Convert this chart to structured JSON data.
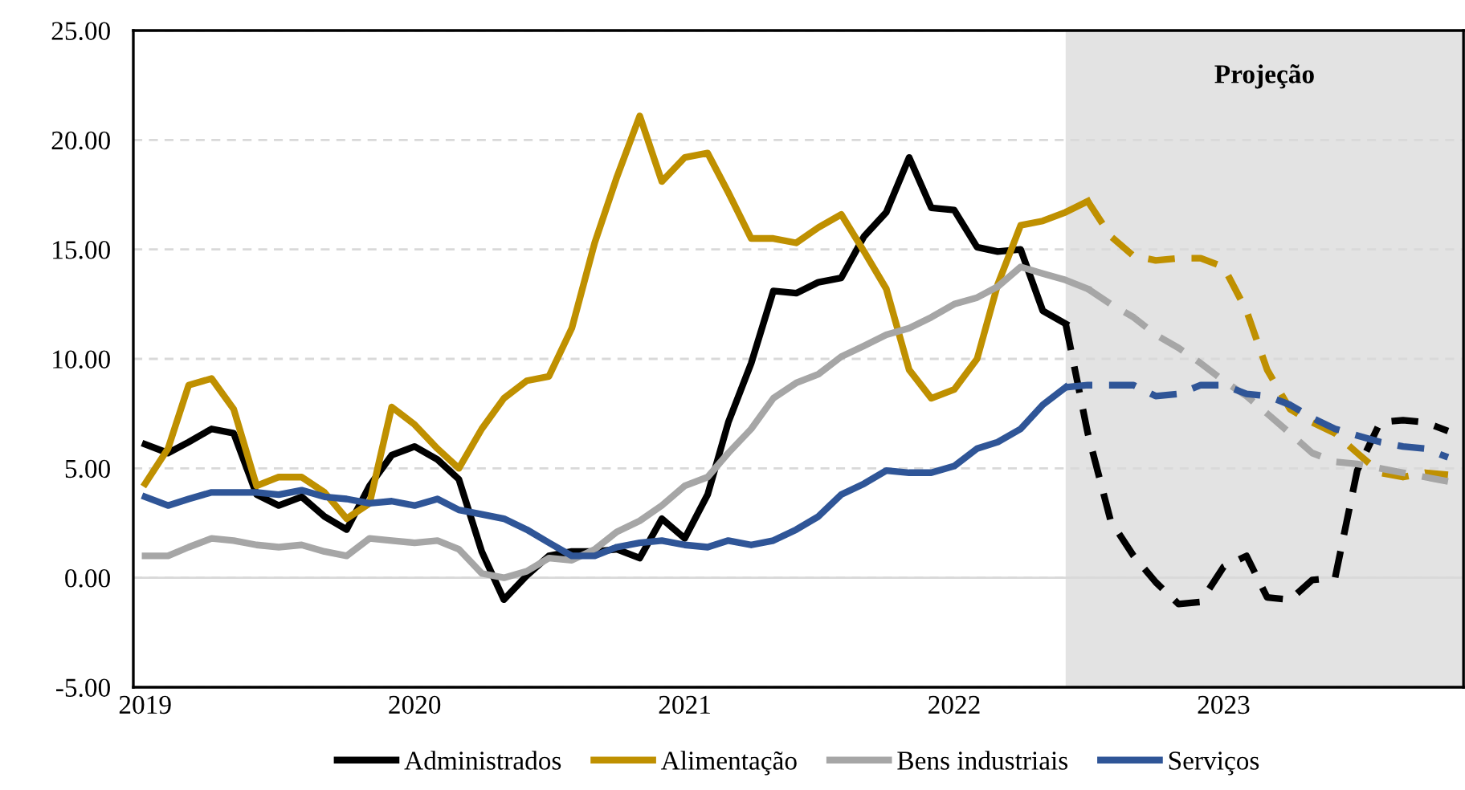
{
  "chart_data": {
    "type": "line",
    "x": [
      "2019-01",
      "2019-02",
      "2019-03",
      "2019-04",
      "2019-05",
      "2019-06",
      "2019-07",
      "2019-08",
      "2019-09",
      "2019-10",
      "2019-11",
      "2019-12",
      "2020-01",
      "2020-02",
      "2020-03",
      "2020-04",
      "2020-05",
      "2020-06",
      "2020-07",
      "2020-08",
      "2020-09",
      "2020-10",
      "2020-11",
      "2020-12",
      "2021-01",
      "2021-02",
      "2021-03",
      "2021-04",
      "2021-05",
      "2021-06",
      "2021-07",
      "2021-08",
      "2021-09",
      "2021-10",
      "2021-11",
      "2021-12",
      "2022-01",
      "2022-02",
      "2022-03",
      "2022-04",
      "2022-05",
      "2022-06"
    ],
    "series": [
      {
        "name": "Administrados",
        "color": "#000000",
        "line_style": "solid",
        "values": [
          6.1,
          5.7,
          6.2,
          6.8,
          6.6,
          3.8,
          3.3,
          3.7,
          2.8,
          2.2,
          4.2,
          5.6,
          6.0,
          5.4,
          4.5,
          1.2,
          -1.0,
          0.1,
          1.0,
          1.2,
          1.2,
          1.3,
          0.9,
          2.7,
          1.8,
          3.8,
          7.1,
          9.8,
          13.1,
          13.0,
          13.5,
          13.7,
          15.6,
          16.7,
          19.2,
          16.9,
          16.8,
          15.1,
          14.9,
          15.0,
          12.2,
          11.6
        ]
      },
      {
        "name": "Alimentação",
        "color": "#bf9000",
        "line_style": "solid",
        "x": [
          "2019-01",
          "2019-02",
          "2019-03",
          "2019-04",
          "2019-05",
          "2019-06",
          "2019-07",
          "2019-08",
          "2019-09",
          "2019-10",
          "2019-11",
          "2019-12",
          "2020-01",
          "2020-02",
          "2020-03",
          "2020-04",
          "2020-05",
          "2020-06",
          "2020-07",
          "2020-08",
          "2020-09",
          "2020-10",
          "2020-11",
          "2020-12",
          "2021-01",
          "2021-02",
          "2021-03",
          "2021-04",
          "2021-05",
          "2021-06",
          "2021-07",
          "2021-08",
          "2021-09",
          "2021-10",
          "2021-11",
          "2021-12",
          "2022-01",
          "2022-02",
          "2022-03",
          "2022-04",
          "2022-05",
          "2022-06",
          "2022-07"
        ],
        "values": [
          4.3,
          5.9,
          8.8,
          9.1,
          7.7,
          4.2,
          4.6,
          4.6,
          3.9,
          2.7,
          3.4,
          7.8,
          7.0,
          5.9,
          5.0,
          6.8,
          8.2,
          9.0,
          9.2,
          11.4,
          15.3,
          18.3,
          21.1,
          18.1,
          19.2,
          19.4,
          17.6,
          15.5,
          15.5,
          15.3,
          16.0,
          16.6,
          14.9,
          13.2,
          9.5,
          8.2,
          8.6,
          10.0,
          13.4,
          16.1,
          16.3,
          16.7,
          17.2
        ]
      },
      {
        "name": "Bens industriais",
        "color": "#a6a6a6",
        "line_style": "solid",
        "x": [
          "2019-01",
          "2019-02",
          "2019-03",
          "2019-04",
          "2019-05",
          "2019-06",
          "2019-07",
          "2019-08",
          "2019-09",
          "2019-10",
          "2019-11",
          "2019-12",
          "2020-01",
          "2020-02",
          "2020-03",
          "2020-04",
          "2020-05",
          "2020-06",
          "2020-07",
          "2020-08",
          "2020-09",
          "2020-10",
          "2020-11",
          "2020-12",
          "2021-01",
          "2021-02",
          "2021-03",
          "2021-04",
          "2021-05",
          "2021-06",
          "2021-07",
          "2021-08",
          "2021-09",
          "2021-10",
          "2021-11",
          "2021-12",
          "2022-01",
          "2022-02",
          "2022-03",
          "2022-04",
          "2022-05",
          "2022-06",
          "2022-07"
        ],
        "values": [
          1.0,
          1.0,
          1.4,
          1.8,
          1.7,
          1.5,
          1.4,
          1.5,
          1.2,
          1.0,
          1.8,
          1.7,
          1.6,
          1.7,
          1.3,
          0.2,
          0.0,
          0.3,
          0.9,
          0.8,
          1.3,
          2.1,
          2.6,
          3.3,
          4.2,
          4.6,
          5.7,
          6.8,
          8.2,
          8.9,
          9.3,
          10.1,
          10.6,
          11.1,
          11.4,
          11.9,
          12.5,
          12.8,
          13.3,
          14.2,
          13.9,
          13.6,
          13.2
        ]
      },
      {
        "name": "Serviços",
        "color": "#2f5597",
        "line_style": "solid",
        "values": [
          3.7,
          3.3,
          3.6,
          3.9,
          3.9,
          3.9,
          3.8,
          4.0,
          3.7,
          3.6,
          3.4,
          3.5,
          3.3,
          3.6,
          3.1,
          2.9,
          2.7,
          2.2,
          1.6,
          1.0,
          1.0,
          1.4,
          1.6,
          1.7,
          1.5,
          1.4,
          1.7,
          1.5,
          1.7,
          2.2,
          2.8,
          3.8,
          4.3,
          4.9,
          4.8,
          4.8,
          5.1,
          5.9,
          6.2,
          6.8,
          7.9,
          8.7
        ]
      },
      {
        "color": "#000000",
        "line_style": "dashed",
        "x": [
          "2022-06",
          "2022-07",
          "2022-08",
          "2022-09",
          "2022-10",
          "2022-11",
          "2022-12",
          "2023-01",
          "2023-02",
          "2023-03",
          "2023-04",
          "2023-05",
          "2023-06",
          "2023-07",
          "2023-08",
          "2023-09",
          "2023-10",
          "2023-11"
        ],
        "values": [
          11.6,
          6.6,
          2.6,
          1.0,
          -0.2,
          -1.2,
          -1.1,
          0.5,
          1.0,
          -0.9,
          -1.0,
          -0.1,
          0.0,
          4.9,
          7.1,
          7.2,
          7.1,
          6.7
        ]
      },
      {
        "color": "#bf9000",
        "line_style": "dashed",
        "x": [
          "2022-07",
          "2022-08",
          "2022-09",
          "2022-10",
          "2022-11",
          "2022-12",
          "2023-01",
          "2023-02",
          "2023-03",
          "2023-04",
          "2023-05",
          "2023-06",
          "2023-07",
          "2023-08",
          "2023-09",
          "2023-10",
          "2023-11"
        ],
        "values": [
          17.2,
          15.6,
          14.7,
          14.5,
          14.6,
          14.6,
          14.2,
          12.2,
          9.5,
          7.7,
          7.1,
          6.6,
          5.7,
          4.8,
          4.6,
          4.8,
          4.7
        ]
      },
      {
        "color": "#a6a6a6",
        "line_style": "dashed",
        "x": [
          "2022-07",
          "2022-08",
          "2022-09",
          "2022-10",
          "2022-11",
          "2022-12",
          "2023-01",
          "2023-02",
          "2023-03",
          "2023-04",
          "2023-05",
          "2023-06",
          "2023-07",
          "2023-08",
          "2023-09",
          "2023-10",
          "2023-11"
        ],
        "values": [
          13.2,
          12.5,
          11.9,
          11.1,
          10.5,
          9.8,
          9.0,
          8.3,
          7.5,
          6.6,
          5.7,
          5.3,
          5.2,
          5.0,
          4.8,
          4.6,
          4.4
        ]
      },
      {
        "color": "#2f5597",
        "line_style": "dashed",
        "x": [
          "2022-06",
          "2022-07",
          "2022-08",
          "2022-09",
          "2022-10",
          "2022-11",
          "2022-12",
          "2023-01",
          "2023-02",
          "2023-03",
          "2023-04",
          "2023-05",
          "2023-06",
          "2023-07",
          "2023-08",
          "2023-09",
          "2023-10",
          "2023-11"
        ],
        "values": [
          8.7,
          8.8,
          8.8,
          8.8,
          8.3,
          8.4,
          8.8,
          8.8,
          8.4,
          8.3,
          7.9,
          7.3,
          6.8,
          6.5,
          6.2,
          6.0,
          5.9,
          5.5
        ]
      }
    ],
    "xlim": [
      "2018-12-16",
      "2023-11-22"
    ],
    "xticks": [
      {
        "value": "2019-01",
        "label": "2019"
      },
      {
        "value": "2020-01",
        "label": "2020"
      },
      {
        "value": "2021-01",
        "label": "2021"
      },
      {
        "value": "2022-01",
        "label": "2022"
      },
      {
        "value": "2023-01",
        "label": "2023"
      }
    ],
    "ylim": [
      -5,
      25
    ],
    "yticks": [
      {
        "value": -5,
        "label": "-5.00"
      },
      {
        "value": 0,
        "label": "0.00"
      },
      {
        "value": 5,
        "label": "5.00"
      },
      {
        "value": 10,
        "label": "10.00"
      },
      {
        "value": 15,
        "label": "15.00"
      },
      {
        "value": 20,
        "label": "20.00"
      },
      {
        "value": 25,
        "label": "25.00"
      }
    ],
    "bands": [
      {
        "axis": "x",
        "from": "2022-06",
        "to": "2023-11-22",
        "label": "Projeção",
        "color": "#e3e3e3"
      }
    ],
    "ref_lines": [
      {
        "axis": "y",
        "value": 0,
        "color": "#d9d9d9",
        "line_style": "solid"
      }
    ],
    "grid": "y",
    "legend": "bottom",
    "marker": "none"
  }
}
